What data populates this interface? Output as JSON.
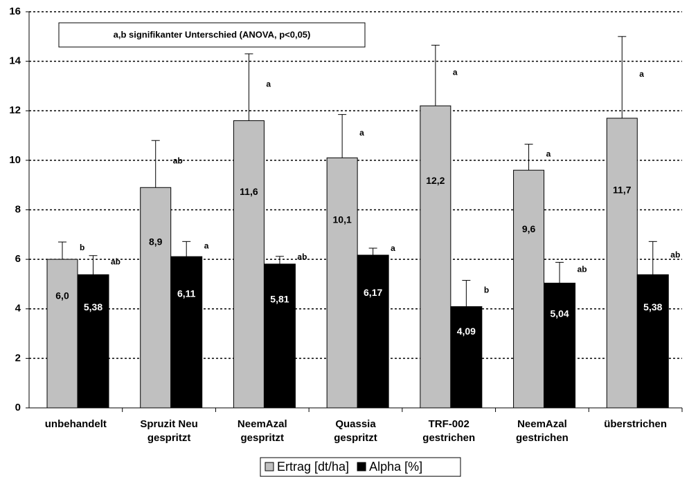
{
  "chart_data": {
    "type": "bar",
    "annotation": "a,b signifikanter Unterschied (ANOVA, p<0,05)",
    "categories": [
      [
        "unbehandelt"
      ],
      [
        "Spruzit Neu",
        "gespritzt"
      ],
      [
        "NeemAzal",
        "gespritzt"
      ],
      [
        "Quassia",
        "gespritzt"
      ],
      [
        "TRF-002",
        "gestrichen"
      ],
      [
        "NeemAzal",
        "gestrichen"
      ],
      [
        "überstrichen"
      ]
    ],
    "series": [
      {
        "name": "Ertrag [dt/ha]",
        "color": "#c0c0c0",
        "values": [
          6.0,
          8.9,
          11.6,
          10.1,
          12.2,
          9.6,
          11.7
        ],
        "value_labels": [
          "6,0",
          "8,9",
          "11,6",
          "10,1",
          "12,2",
          "9,6",
          "11,7"
        ],
        "errors": [
          0.7,
          1.9,
          2.7,
          1.75,
          2.45,
          1.05,
          3.3
        ],
        "letters": [
          "b",
          "ab",
          "a",
          "a",
          "a",
          "a",
          "a"
        ]
      },
      {
        "name": "Alpha [%]",
        "color": "#000000",
        "values": [
          5.38,
          6.11,
          5.81,
          6.17,
          4.09,
          5.04,
          5.38
        ],
        "value_labels": [
          "5,38",
          "6,11",
          "5,81",
          "6,17",
          "4,09",
          "5,04",
          "5,38"
        ],
        "errors": [
          0.77,
          0.61,
          0.31,
          0.28,
          1.06,
          0.84,
          1.34
        ],
        "letters": [
          "ab",
          "a",
          "ab",
          "a",
          "b",
          "ab",
          "ab"
        ]
      }
    ],
    "ylim": [
      0,
      16
    ],
    "yticks": [
      0,
      2,
      4,
      6,
      8,
      10,
      12,
      14,
      16
    ],
    "grid": true
  }
}
